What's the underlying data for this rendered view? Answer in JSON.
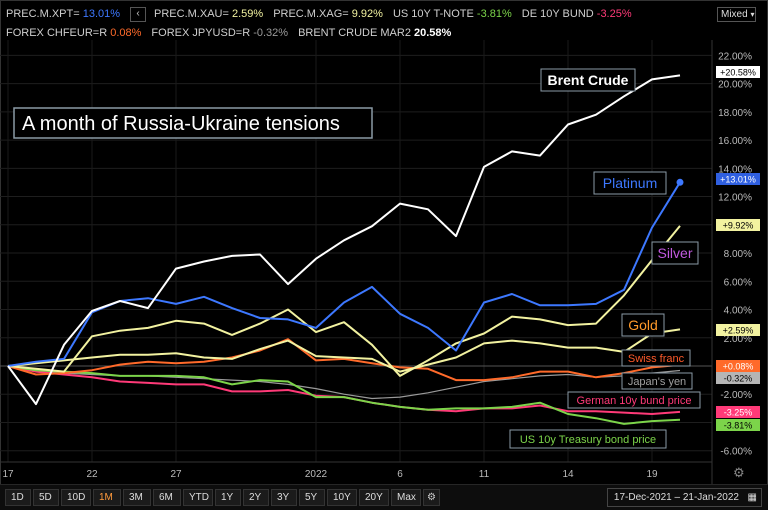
{
  "legend": {
    "row1": [
      {
        "name": "PREC.M.XPT=",
        "value": "13.01%",
        "color": "#3d78ff"
      },
      {
        "name": "PREC.M.XAU=",
        "value": "2.59%",
        "color": "#f2f2a0"
      },
      {
        "name": "PREC.M.XAG=",
        "value": "9.92%",
        "color": "#f2f2a0"
      },
      {
        "name": "US 10Y T-NOTE",
        "value": "-3.81%",
        "color": "#7cd44a"
      },
      {
        "name": "DE 10Y BUND",
        "value": "-3.25%",
        "color": "#ff3a78"
      }
    ],
    "row2": [
      {
        "name": "FOREX CHFEUR=R",
        "value": "0.08%",
        "color": "#ff6a2a"
      },
      {
        "name": "FOREX JPYUSD=R",
        "value": "-0.32%",
        "color": "#9a9a9a"
      },
      {
        "name": "BRENT CRUDE MAR2",
        "value": "20.58%",
        "color": "#ffffff"
      }
    ],
    "chevron": "‹"
  },
  "scale_mode": "Mixed",
  "chart_data": {
    "type": "line",
    "title": "A month of Russia-Ukraine tensions",
    "x": [
      "Dec 17",
      "Dec 20",
      "Dec 21",
      "Dec 22",
      "Dec 23",
      "Dec 24",
      "Dec 27",
      "Dec 28",
      "Dec 29",
      "Dec 30",
      "Dec 31",
      "Jan 3",
      "Jan 4",
      "Jan 5",
      "Jan 6",
      "Jan 7",
      "Jan 10",
      "Jan 11",
      "Jan 12",
      "Jan 13",
      "Jan 14",
      "Jan 17",
      "Jan 18",
      "Jan 19",
      "Jan 20"
    ],
    "x_tick_labels": [
      {
        "label": "17",
        "index": 0
      },
      {
        "label": "22",
        "index": 3
      },
      {
        "label": "27",
        "index": 6
      },
      {
        "label": "2022",
        "index": 11
      },
      {
        "label": "6",
        "index": 14
      },
      {
        "label": "11",
        "index": 17
      },
      {
        "label": "14",
        "index": 20
      },
      {
        "label": "19",
        "index": 23
      }
    ],
    "y_ticks": [
      "22.00%",
      "20.00%",
      "18.00%",
      "16.00%",
      "14.00%",
      "12.00%",
      "10.00%",
      "8.00%",
      "6.00%",
      "4.00%",
      "2.00%",
      "-2.00%",
      "-4.00%",
      "-6.00%"
    ],
    "y_tick_values": [
      22,
      20,
      18,
      16,
      14,
      12,
      10,
      8,
      6,
      4,
      2,
      -2,
      -4,
      -6
    ],
    "ylim": [
      -7,
      23
    ],
    "grid": true,
    "series": [
      {
        "name": "Brent Crude",
        "color": "#ffffff",
        "last_label": "+20.58%",
        "label_bg": "#ffffff",
        "label_fg": "#000000",
        "values": [
          0,
          -2.7,
          1.5,
          3.9,
          4.6,
          4.1,
          6.9,
          7.4,
          7.8,
          7.9,
          5.8,
          7.6,
          8.9,
          9.9,
          11.5,
          11.1,
          9.2,
          14.1,
          15.2,
          14.9,
          17.1,
          17.8,
          19.1,
          20.3,
          20.58
        ]
      },
      {
        "name": "Platinum",
        "color": "#3d78ff",
        "last_label": "+13.01%",
        "label_bg": "#2f5fe0",
        "label_fg": "#ffffff",
        "values": [
          0,
          0.3,
          0.5,
          3.8,
          4.6,
          4.8,
          4.4,
          4.9,
          4.1,
          3.4,
          3.3,
          2.7,
          4.5,
          5.6,
          3.7,
          2.7,
          1.1,
          4.5,
          5.1,
          4.3,
          4.3,
          4.4,
          5.4,
          9.8,
          13.01
        ]
      },
      {
        "name": "Silver",
        "color": "#f2f2a0",
        "last_label": "+9.92%",
        "label_bg": "#f2f2a0",
        "label_fg": "#000000",
        "values": [
          0,
          -0.2,
          -0.4,
          2.1,
          2.5,
          2.7,
          3.2,
          3.0,
          2.2,
          3.0,
          4.0,
          2.4,
          3.1,
          1.5,
          -0.7,
          0.4,
          1.6,
          2.3,
          3.5,
          3.3,
          2.9,
          3.0,
          5.0,
          7.5,
          9.92
        ]
      },
      {
        "name": "Gold",
        "color": "#f2f2a0",
        "last_label": "+2.59%",
        "label_bg": "#f2f2a0",
        "label_fg": "#000000",
        "values": [
          0,
          0.2,
          0.4,
          0.6,
          0.8,
          0.8,
          0.9,
          0.6,
          0.5,
          1.2,
          1.8,
          0.7,
          0.6,
          0.5,
          -0.4,
          0.1,
          0.6,
          1.6,
          1.8,
          1.6,
          1.3,
          1.3,
          1.0,
          2.3,
          2.59
        ]
      },
      {
        "name": "Swiss franc",
        "color": "#ff6a2a",
        "last_label": "+0.08%",
        "label_bg": "#ff6a2a",
        "label_fg": "#ffffff",
        "values": [
          0,
          -0.6,
          -0.5,
          -0.3,
          0.1,
          0.3,
          0.2,
          0.3,
          0.6,
          1.1,
          1.9,
          0.4,
          0.5,
          0.2,
          -0.1,
          -0.2,
          -1.0,
          -1.0,
          -0.8,
          -0.4,
          -0.4,
          -0.8,
          -0.5,
          -0.1,
          0.08
        ]
      },
      {
        "name": "Japan's yen",
        "color": "#9a9a9a",
        "last_label": "-0.32%",
        "label_bg": "#b5b5b5",
        "label_fg": "#000000",
        "values": [
          0,
          -0.3,
          -0.5,
          -0.6,
          -0.7,
          -0.7,
          -0.8,
          -0.9,
          -1.0,
          -1.1,
          -1.3,
          -1.6,
          -2.0,
          -2.3,
          -2.2,
          -1.9,
          -1.5,
          -1.1,
          -0.9,
          -0.7,
          -0.6,
          -0.8,
          -0.7,
          -0.5,
          -0.32
        ]
      },
      {
        "name": "German 10y bund price",
        "color": "#ff3a78",
        "last_label": "-3.25%",
        "label_bg": "#ff3a78",
        "label_fg": "#ffffff",
        "values": [
          0,
          -0.4,
          -0.6,
          -0.8,
          -1.1,
          -1.2,
          -1.3,
          -1.3,
          -1.8,
          -1.8,
          -1.7,
          -2.1,
          -2.2,
          -2.6,
          -2.9,
          -3.1,
          -3.2,
          -3.0,
          -3.0,
          -2.8,
          -3.2,
          -3.2,
          -3.3,
          -3.4,
          -3.25
        ]
      },
      {
        "name": "US 10y Treasury bond price",
        "color": "#7cd44a",
        "last_label": "-3.81%",
        "label_bg": "#7cd44a",
        "label_fg": "#000000",
        "values": [
          0,
          -0.3,
          -0.4,
          -0.5,
          -0.7,
          -0.7,
          -0.7,
          -0.8,
          -1.3,
          -1.0,
          -1.1,
          -2.2,
          -2.2,
          -2.6,
          -2.9,
          -3.1,
          -3.0,
          -3.0,
          -2.9,
          -2.6,
          -3.4,
          -3.7,
          -4.1,
          -3.9,
          -3.81
        ]
      }
    ],
    "annotations": [
      {
        "text": "Brent Crude",
        "series": "Brent Crude",
        "color": "#ffffff",
        "bold": true
      },
      {
        "text": "Platinum",
        "series": "Platinum",
        "color": "#3d78ff",
        "bold": false
      },
      {
        "text": "Silver",
        "series": "Silver",
        "color": "#c25adf",
        "bold": false
      },
      {
        "text": "Gold",
        "series": "Gold",
        "color": "#ff9a2a",
        "bold": false
      },
      {
        "text": "Swiss franc",
        "series": "Swiss franc",
        "color": "#ff5a2a",
        "bold": false
      },
      {
        "text": "Japan's yen",
        "series": "Japan's yen",
        "color": "#a0a0a0",
        "bold": false
      },
      {
        "text": "German 10y bund price",
        "series": "German 10y bund price",
        "color": "#ff3a78",
        "bold": false
      },
      {
        "text": "US 10y Treasury bond price",
        "series": "US 10y Treasury bond price",
        "color": "#7cd44a",
        "bold": false
      }
    ]
  },
  "footer": {
    "ranges": [
      "1D",
      "5D",
      "10D",
      "1M",
      "3M",
      "6M",
      "YTD",
      "1Y",
      "2Y",
      "3Y",
      "5Y",
      "10Y",
      "20Y",
      "Max"
    ],
    "active_range": "1M",
    "date_range": "17-Dec-2021  –  21-Jan-2022"
  }
}
